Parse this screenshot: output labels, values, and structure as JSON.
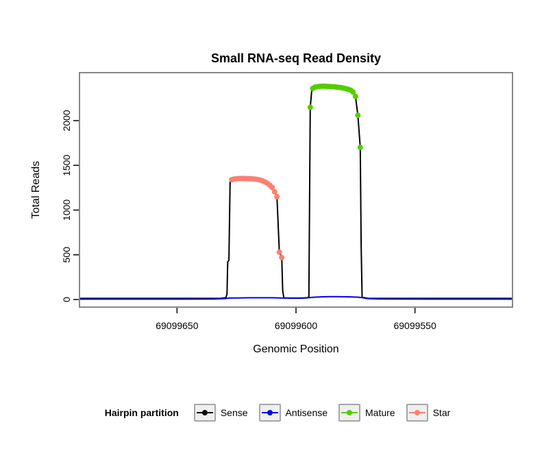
{
  "chart_data": {
    "type": "line",
    "title": "Small RNA-seq Read Density",
    "xlabel": "Genomic Position",
    "ylabel": "Total Reads",
    "xlim": [
      69099691,
      69099509
    ],
    "ylim": [
      -85,
      2536
    ],
    "x_ticks": [
      69099650,
      69099600,
      69099550
    ],
    "y_ticks": [
      0,
      500,
      1000,
      1500,
      2000
    ],
    "x_axis_reversed": true,
    "grid": false,
    "style": {
      "plot_border": "#888888",
      "legend_box_border": "#a6a6a6",
      "legend_box_fill": "#efefef"
    },
    "legend": {
      "title": "Hairpin partition",
      "position": "bottom",
      "entries": [
        {
          "label": "Sense",
          "color": "#000000"
        },
        {
          "label": "Antisense",
          "color": "#0000ee"
        },
        {
          "label": "Mature",
          "color": "#55cc00"
        },
        {
          "label": "Star",
          "color": "#fa8072"
        }
      ]
    },
    "series": [
      {
        "name": "Sense",
        "type": "line",
        "color": "#000000",
        "points": [
          [
            69099691,
            12
          ],
          [
            69099678,
            12
          ],
          [
            69099665,
            12
          ],
          [
            69099652,
            12
          ],
          [
            69099640,
            12
          ],
          [
            69099632,
            13
          ],
          [
            69099629.5,
            20
          ],
          [
            69099629,
            60
          ],
          [
            69099628.7,
            420
          ],
          [
            69099628.2,
            440
          ],
          [
            69099627.7,
            1310
          ],
          [
            69099627,
            1340
          ],
          [
            69099626,
            1347
          ],
          [
            69099625,
            1350
          ],
          [
            69099624,
            1352
          ],
          [
            69099623,
            1353
          ],
          [
            69099622,
            1353
          ],
          [
            69099621,
            1352
          ],
          [
            69099620,
            1351
          ],
          [
            69099619,
            1350
          ],
          [
            69099618,
            1348
          ],
          [
            69099617,
            1345
          ],
          [
            69099616,
            1341
          ],
          [
            69099615,
            1335
          ],
          [
            69099614,
            1326
          ],
          [
            69099613,
            1314
          ],
          [
            69099612,
            1298
          ],
          [
            69099611,
            1278
          ],
          [
            69099610,
            1252
          ],
          [
            69099609,
            1205
          ],
          [
            69099608,
            1150
          ],
          [
            69099607,
            530
          ],
          [
            69099606,
            470
          ],
          [
            69099605.6,
            100
          ],
          [
            69099605.1,
            18
          ],
          [
            69099602,
            15
          ],
          [
            69099598,
            15
          ],
          [
            69099595.3,
            18
          ],
          [
            69099594.6,
            30
          ],
          [
            69099594,
            2150
          ],
          [
            69099593.4,
            2330
          ],
          [
            69099593,
            2360
          ],
          [
            69099592,
            2375
          ],
          [
            69099591,
            2380
          ],
          [
            69099590,
            2383
          ],
          [
            69099589,
            2384
          ],
          [
            69099588,
            2384
          ],
          [
            69099587,
            2383
          ],
          [
            69099586,
            2382
          ],
          [
            69099585,
            2380
          ],
          [
            69099584,
            2378
          ],
          [
            69099583,
            2375
          ],
          [
            69099582,
            2372
          ],
          [
            69099581,
            2368
          ],
          [
            69099580,
            2363
          ],
          [
            69099579,
            2357
          ],
          [
            69099578,
            2350
          ],
          [
            69099577,
            2340
          ],
          [
            69099576,
            2320
          ],
          [
            69099575,
            2270
          ],
          [
            69099574,
            2060
          ],
          [
            69099573,
            1700
          ],
          [
            69099572.6,
            600
          ],
          [
            69099572.2,
            25
          ],
          [
            69099570,
            14
          ],
          [
            69099562,
            12
          ],
          [
            69099550,
            12
          ],
          [
            69099535,
            12
          ],
          [
            69099520,
            12
          ],
          [
            69099509,
            12
          ]
        ]
      },
      {
        "name": "Antisense",
        "type": "line",
        "color": "#0000ee",
        "points": [
          [
            69099691,
            4
          ],
          [
            69099670,
            4
          ],
          [
            69099650,
            4
          ],
          [
            69099635,
            5
          ],
          [
            69099630,
            10
          ],
          [
            69099628,
            16
          ],
          [
            69099624,
            18
          ],
          [
            69099620,
            19
          ],
          [
            69099615,
            19
          ],
          [
            69099610,
            19
          ],
          [
            69099606,
            17
          ],
          [
            69099602,
            16
          ],
          [
            69099598,
            17
          ],
          [
            69099595,
            20
          ],
          [
            69099592,
            26
          ],
          [
            69099589,
            30
          ],
          [
            69099586,
            32
          ],
          [
            69099583,
            32
          ],
          [
            69099580,
            31
          ],
          [
            69099577,
            29
          ],
          [
            69099574,
            26
          ],
          [
            69099572,
            20
          ],
          [
            69099570,
            10
          ],
          [
            69099565,
            6
          ],
          [
            69099555,
            5
          ],
          [
            69099540,
            4
          ],
          [
            69099525,
            4
          ],
          [
            69099509,
            4
          ]
        ]
      },
      {
        "name": "Mature",
        "type": "points",
        "color": "#55cc00",
        "points": [
          [
            69099594,
            2150
          ],
          [
            69099593,
            2360
          ],
          [
            69099592,
            2375
          ],
          [
            69099591,
            2380
          ],
          [
            69099590,
            2383
          ],
          [
            69099589,
            2384
          ],
          [
            69099588,
            2384
          ],
          [
            69099587,
            2383
          ],
          [
            69099586,
            2382
          ],
          [
            69099585,
            2380
          ],
          [
            69099584,
            2378
          ],
          [
            69099583,
            2375
          ],
          [
            69099582,
            2372
          ],
          [
            69099581,
            2368
          ],
          [
            69099580,
            2363
          ],
          [
            69099579,
            2357
          ],
          [
            69099578,
            2350
          ],
          [
            69099577,
            2340
          ],
          [
            69099576,
            2320
          ],
          [
            69099575,
            2270
          ],
          [
            69099574,
            2060
          ],
          [
            69099573,
            1700
          ]
        ]
      },
      {
        "name": "Star",
        "type": "points",
        "color": "#fa8072",
        "points": [
          [
            69099627,
            1340
          ],
          [
            69099626,
            1347
          ],
          [
            69099625,
            1350
          ],
          [
            69099624,
            1352
          ],
          [
            69099623,
            1353
          ],
          [
            69099622,
            1353
          ],
          [
            69099621,
            1352
          ],
          [
            69099620,
            1351
          ],
          [
            69099619,
            1350
          ],
          [
            69099618,
            1348
          ],
          [
            69099617,
            1345
          ],
          [
            69099616,
            1341
          ],
          [
            69099615,
            1335
          ],
          [
            69099614,
            1326
          ],
          [
            69099613,
            1314
          ],
          [
            69099612,
            1298
          ],
          [
            69099611,
            1278
          ],
          [
            69099610,
            1252
          ],
          [
            69099609,
            1205
          ],
          [
            69099608,
            1150
          ],
          [
            69099607,
            530
          ],
          [
            69099606,
            470
          ]
        ]
      }
    ]
  }
}
